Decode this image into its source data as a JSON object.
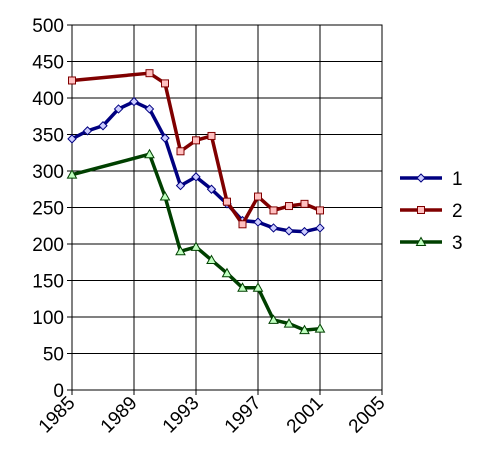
{
  "chart_data": {
    "type": "line",
    "xlim": [
      1985,
      2005
    ],
    "xticks": [
      1985,
      1989,
      1993,
      1997,
      2001,
      2005
    ],
    "ylim": [
      0,
      500
    ],
    "yticks": [
      0,
      50,
      100,
      150,
      200,
      250,
      300,
      350,
      400,
      450,
      500
    ],
    "grid": true,
    "legend": "right",
    "series": [
      {
        "name": "1",
        "color": "#000080",
        "marker": "diamond",
        "x": [
          1985,
          1986,
          1987,
          1988,
          1989,
          1990,
          1991,
          1992,
          1993,
          1994,
          1995,
          1996,
          1997,
          1998,
          1999,
          2000,
          2001
        ],
        "values": [
          344,
          355,
          362,
          385,
          395,
          385,
          345,
          280,
          292,
          275,
          255,
          232,
          230,
          222,
          218,
          217,
          222
        ]
      },
      {
        "name": "2",
        "color": "#800000",
        "marker": "square",
        "x": [
          1985,
          1990,
          1991,
          1992,
          1993,
          1994,
          1995,
          1996,
          1997,
          1998,
          1999,
          2000,
          2001
        ],
        "values": [
          424,
          434,
          420,
          327,
          342,
          348,
          258,
          227,
          265,
          246,
          252,
          255,
          246
        ]
      },
      {
        "name": "3",
        "color": "#004000",
        "marker": "triangle",
        "x": [
          1985,
          1990,
          1991,
          1992,
          1993,
          1994,
          1995,
          1996,
          1997,
          1998,
          1999,
          2000,
          2001
        ],
        "values": [
          295,
          323,
          265,
          190,
          196,
          178,
          160,
          140,
          140,
          96,
          91,
          82,
          84
        ]
      }
    ]
  }
}
